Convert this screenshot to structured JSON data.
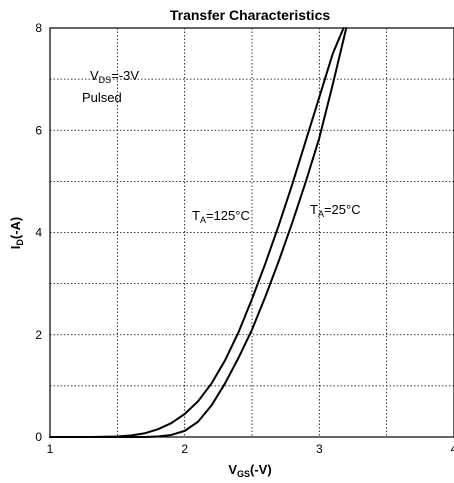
{
  "chart_data": {
    "type": "line",
    "title": "Transfer Characteristics",
    "xlabel": {
      "main": "V",
      "sub": "GS",
      "rest": "(-V)"
    },
    "ylabel": {
      "main": "I",
      "sub": "D",
      "rest": "(-A)"
    },
    "xlim": [
      1,
      4
    ],
    "ylim": [
      0,
      8
    ],
    "xticks": [
      1,
      2,
      3,
      4
    ],
    "yticks": [
      0,
      2,
      4,
      6,
      8
    ],
    "grid": true,
    "grid_style": "dotted",
    "annotations": {
      "condition_1": {
        "main": "V",
        "sub": "DS",
        "rest": "=-3V"
      },
      "condition_2": "Pulsed",
      "label_125": {
        "main": "T",
        "sub": "A",
        "rest": "=125°C"
      },
      "label_25": {
        "main": "T",
        "sub": "A",
        "rest": "=25°C"
      }
    },
    "series": [
      {
        "x": [
          1.0,
          1.3,
          1.5,
          1.6,
          1.7,
          1.8,
          1.9,
          2.0,
          2.1,
          2.2,
          2.3,
          2.4,
          2.5,
          2.6,
          2.7,
          2.8,
          2.9,
          3.0,
          3.1,
          3.18
        ],
        "y": [
          0.0,
          0.0,
          0.01,
          0.03,
          0.07,
          0.15,
          0.27,
          0.45,
          0.7,
          1.05,
          1.5,
          2.05,
          2.7,
          3.4,
          4.15,
          4.95,
          5.8,
          6.65,
          7.5,
          8.0
        ]
      },
      {
        "x": [
          1.0,
          1.5,
          1.7,
          1.8,
          1.9,
          2.0,
          2.1,
          2.2,
          2.3,
          2.4,
          2.5,
          2.6,
          2.7,
          2.8,
          2.9,
          3.0,
          3.1,
          3.2
        ],
        "y": [
          0.0,
          0.0,
          0.0,
          0.01,
          0.04,
          0.12,
          0.3,
          0.62,
          1.05,
          1.55,
          2.1,
          2.75,
          3.45,
          4.2,
          5.0,
          5.85,
          6.9,
          8.0
        ]
      }
    ]
  }
}
